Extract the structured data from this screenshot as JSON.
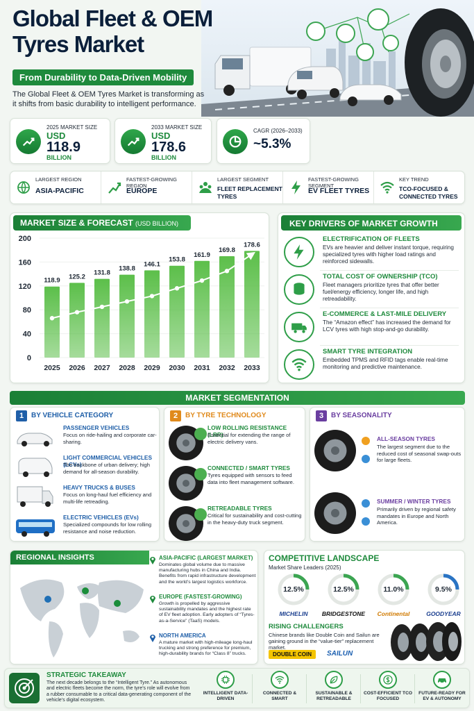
{
  "header": {
    "title_line1": "Global Fleet & OEM",
    "title_line2": "Tyres Market",
    "subtitle": "From Durability to Data-Driven Mobility",
    "intro": "The Global Fleet & OEM Tyres Market is transforming as it shifts from basic durability to intelligent performance."
  },
  "stats": [
    {
      "label": "2025 MARKET SIZE",
      "currency": "USD",
      "value": "118.9",
      "unit": "BILLION"
    },
    {
      "label": "2033 MARKET SIZE",
      "currency": "USD",
      "value": "178.6",
      "unit": "BILLION"
    },
    {
      "label": "CAGR (2026–2033)",
      "value": "~5.3%"
    }
  ],
  "highlights": [
    {
      "label": "LARGEST REGION",
      "value": "ASIA-PACIFIC"
    },
    {
      "label": "FASTEST-GROWING REGION",
      "value": "EUROPE"
    },
    {
      "label": "LARGEST SEGMENT",
      "value": "FLEET REPLACEMENT TYRES"
    },
    {
      "label": "FASTEST-GROWING SEGMENT",
      "value": "EV FLEET TYRES"
    },
    {
      "label": "KEY TREND",
      "value": "TCO-FOCUSED & CONNECTED TYRES"
    }
  ],
  "chart_data": {
    "type": "bar",
    "title": "MARKET SIZE & FORECAST",
    "subtitle": "(USD BILLION)",
    "categories": [
      "2025",
      "2026",
      "2027",
      "2028",
      "2029",
      "2030",
      "2031",
      "2032",
      "2033"
    ],
    "series": [
      {
        "color": "#5cbf4a",
        "values": [
          118.9,
          125.2,
          131.8,
          138.8,
          146.1,
          153.8,
          161.9,
          169.8,
          178.6
        ]
      },
      {
        "type": "line",
        "color": "#ffffff",
        "values": [
          66,
          76,
          85,
          94,
          103,
          116,
          129,
          145,
          173
        ]
      }
    ],
    "ylim": [
      0,
      200
    ],
    "yticks": [
      0,
      40,
      80,
      120,
      160,
      200
    ],
    "grid": true
  },
  "drivers": {
    "title": "KEY DRIVERS OF MARKET GROWTH",
    "items": [
      {
        "title": "ELECTRIFICATION OF FLEETS",
        "text": "EVs are heavier and deliver instant torque, requiring specialized tyres with higher load ratings and reinforced sidewalls."
      },
      {
        "title": "TOTAL COST OF OWNERSHIP (TCO)",
        "text": "Fleet managers prioritize tyres that offer better fuel/energy efficiency, longer life, and high retreadability."
      },
      {
        "title": "E-COMMERCE & LAST-MILE DELIVERY",
        "text": "The “Amazon effect” has increased the demand for LCV tyres with high stop-and-go durability."
      },
      {
        "title": "SMART TYRE INTEGRATION",
        "text": "Embedded TPMS and RFID tags enable real-time monitoring and predictive maintenance."
      }
    ]
  },
  "segmentation": {
    "title": "MARKET SEGMENTATION",
    "columns": [
      {
        "number": "1",
        "title": "BY VEHICLE CATEGORY",
        "items": [
          {
            "title": "PASSENGER VEHICLES",
            "text": "Focus on ride-hailing and corporate car-sharing."
          },
          {
            "title": "LIGHT COMMERCIAL VEHICLES (LCVs)",
            "text": "The backbone of urban delivery; high demand for all-season durability."
          },
          {
            "title": "HEAVY TRUCKS & BUSES",
            "text": "Focus on long-haul fuel efficiency and multi-life retreading."
          },
          {
            "title": "ELECTRIC VEHICLES (EVs)",
            "text": "Specialized compounds for low rolling resistance and noise reduction."
          }
        ]
      },
      {
        "number": "2",
        "title": "BY TYRE TECHNOLOGY",
        "items": [
          {
            "title": "LOW ROLLING RESISTANCE (LRR)",
            "text": "Essential for extending the range of electric delivery vans."
          },
          {
            "title": "CONNECTED / SMART TYRES",
            "text": "Tyres equipped with sensors to feed data into fleet management software."
          },
          {
            "title": "RETREADABLE TYRES",
            "text": "Critical for sustainability and cost-cutting in the heavy-duty truck segment."
          }
        ]
      },
      {
        "number": "3",
        "title": "BY SEASONALITY",
        "items": [
          {
            "title": "ALL-SEASON TYRES",
            "text": "The largest segment due to the reduced cost of seasonal swap-outs for large fleets."
          },
          {
            "title": "SUMMER / WINTER TYRES",
            "text": "Primarily driven by regional safety mandates in Europe and North America."
          }
        ]
      }
    ]
  },
  "regional": {
    "title": "REGIONAL INSIGHTS",
    "items": [
      {
        "title": "ASIA-PACIFIC (LARGEST MARKET)",
        "text": "Dominates global volume due to massive manufacturing hubs in China and India. Benefits from rapid infrastructure development and the world’s largest logistics workforce."
      },
      {
        "title": "EUROPE (FASTEST-GROWING)",
        "text": "Growth is propelled by aggressive sustainability mandates and the highest rate of EV fleet adoption. Early adopters of “Tyres-as-a-Service” (TaaS) models."
      },
      {
        "title": "NORTH AMERICA",
        "text": "A mature market with high-mileage long-haul trucking and strong preference for premium, high-durability brands for “Class 8” trucks."
      }
    ]
  },
  "competitive": {
    "title": "COMPETITIVE LANDSCAPE",
    "subtitle": "Market Share Leaders (2025)",
    "leaders": [
      {
        "share": "12.5%",
        "brand": "MICHELIN"
      },
      {
        "share": "12.5%",
        "brand": "BRIDGESTONE"
      },
      {
        "share": "11.0%",
        "brand": "Continental"
      },
      {
        "share": "9.5%",
        "brand": "GOODYEAR"
      }
    ],
    "challengers": {
      "title": "RISING CHALLENGERS",
      "text": "Chinese brands like Double Coin and Sailun are gaining ground in the “value-tier” replacement market.",
      "brands": [
        "DOUBLE COIN",
        "SAILUN"
      ]
    }
  },
  "takeaway": {
    "title": "STRATEGIC TAKEAWAY",
    "text": "The next decade belongs to the “Intelligent Tyre.” As autonomous and electric fleets become the norm, the tyre’s role will evolve from a rubber consumable to a critical data-generating component of the vehicle’s digital ecosystem.",
    "pillars": [
      "INTELLIGENT DATA-DRIVEN",
      "CONNECTED & SMART",
      "SUSTAINABLE & RETREADABLE",
      "COST-EFFICIENT TCO FOCUSED",
      "FUTURE-READY FOR EV & AUTONOMY"
    ]
  }
}
